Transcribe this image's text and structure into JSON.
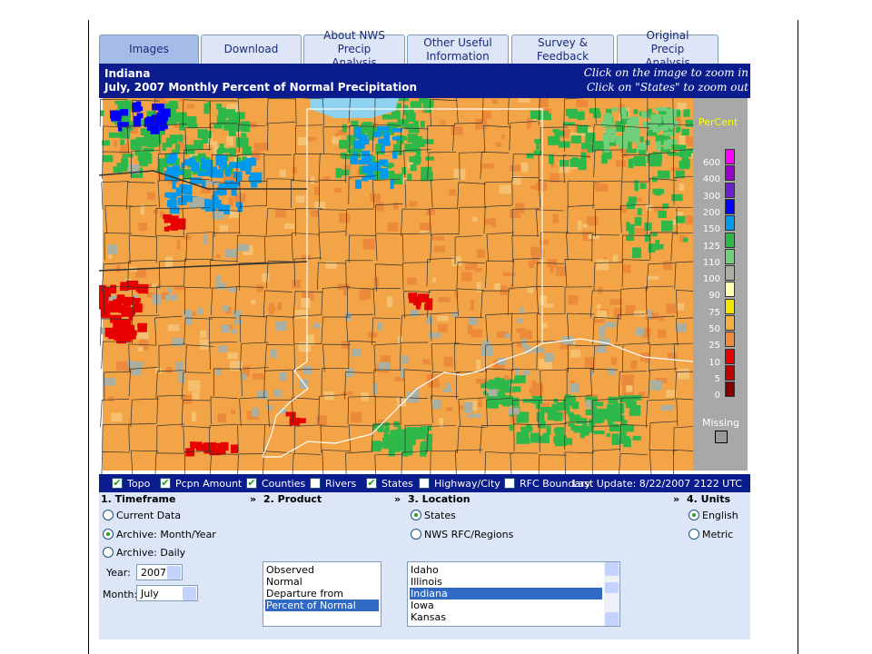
{
  "tabs": [
    {
      "label": "Images",
      "selected": true
    },
    {
      "label": "Download",
      "selected": false
    },
    {
      "label": "About NWS Precip Analysis",
      "selected": false
    },
    {
      "label": "Other Useful Information",
      "selected": false
    },
    {
      "label": "Survey & Feedback",
      "selected": false
    },
    {
      "label": "Original Precip Analysis",
      "selected": false
    }
  ],
  "header": {
    "region": "Indiana",
    "title": "July, 2007 Monthly Percent of Normal Precipitation",
    "hint_zoom_in": "Click on the image to zoom in",
    "hint_zoom_out": "Click on \"States\" to zoom out"
  },
  "legend": {
    "title": "PerCent",
    "missing": "Missing",
    "entries": [
      {
        "label": "600",
        "color": "#ff00ff"
      },
      {
        "label": "400",
        "color": "#9a00cc"
      },
      {
        "label": "300",
        "color": "#6a1fd0"
      },
      {
        "label": "200",
        "color": "#0000ff"
      },
      {
        "label": "150",
        "color": "#0099ee"
      },
      {
        "label": "125",
        "color": "#2fb84a"
      },
      {
        "label": "110",
        "color": "#6fcf7a"
      },
      {
        "label": "100",
        "color": "#a9b0a2"
      },
      {
        "label": "90",
        "color": "#ffffb0"
      },
      {
        "label": "75",
        "color": "#f2e600"
      },
      {
        "label": "50",
        "color": "#f5b040"
      },
      {
        "label": "25",
        "color": "#ee8a3a"
      },
      {
        "label": "10",
        "color": "#e80000"
      },
      {
        "label": "5",
        "color": "#c00000"
      },
      {
        "label": "0",
        "color": "#800000"
      }
    ]
  },
  "layers": [
    {
      "label": "Topo",
      "checked": true
    },
    {
      "label": "Pcpn Amount",
      "checked": true
    },
    {
      "label": "Counties",
      "checked": true
    },
    {
      "label": "Rivers",
      "checked": false
    },
    {
      "label": "States",
      "checked": true
    },
    {
      "label": "Highway/City",
      "checked": false
    },
    {
      "label": "RFC Boundary",
      "checked": false
    }
  ],
  "last_update": "Last Update: 8/22/2007 2122 UTC",
  "form": {
    "separator": "»",
    "timeframe": {
      "heading": "1. Timeframe",
      "options": [
        {
          "label": "Current Data",
          "selected": false
        },
        {
          "label": "Archive: Month/Year",
          "selected": true
        },
        {
          "label": "Archive: Daily",
          "selected": false
        }
      ],
      "year_label": "Year:",
      "year": "2007",
      "month_label": "Month:",
      "month": "July"
    },
    "product": {
      "heading": "2. Product",
      "items": [
        "Observed",
        "Normal",
        "Departure from Normal",
        "Percent of Normal"
      ],
      "selected": 3
    },
    "location": {
      "heading": "3. Location",
      "options": [
        {
          "label": "States",
          "selected": true
        },
        {
          "label": "NWS RFC/Regions",
          "selected": false
        }
      ],
      "items": [
        "Idaho",
        "Illinois",
        "Indiana",
        "Iowa",
        "Kansas"
      ],
      "selected": 2
    },
    "units": {
      "heading": "4. Units",
      "options": [
        {
          "label": "English",
          "selected": true
        },
        {
          "label": "Metric",
          "selected": false
        }
      ]
    }
  }
}
